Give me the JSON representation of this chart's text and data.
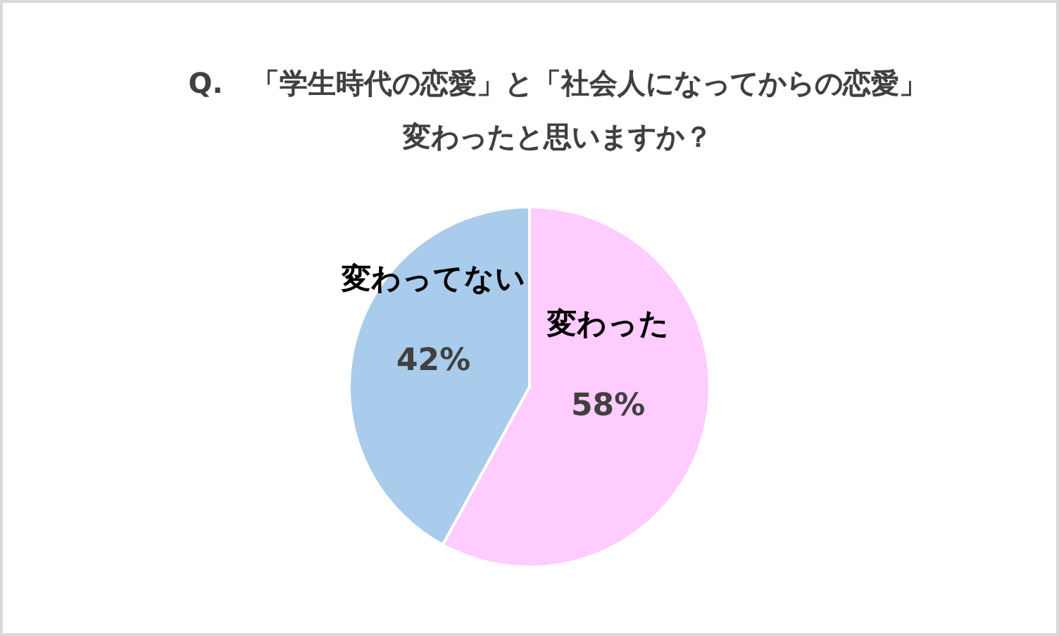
{
  "chart_data": {
    "type": "pie",
    "title": "Q.　「学生時代の恋愛」と「社会人になってからの恋愛」変わったと思いますか？",
    "categories": [
      "変わった",
      "変わってない"
    ],
    "values": [
      58,
      42
    ],
    "value_labels": [
      "58%",
      "42%"
    ],
    "colors": [
      "#ffccff",
      "#a9cbec"
    ]
  }
}
